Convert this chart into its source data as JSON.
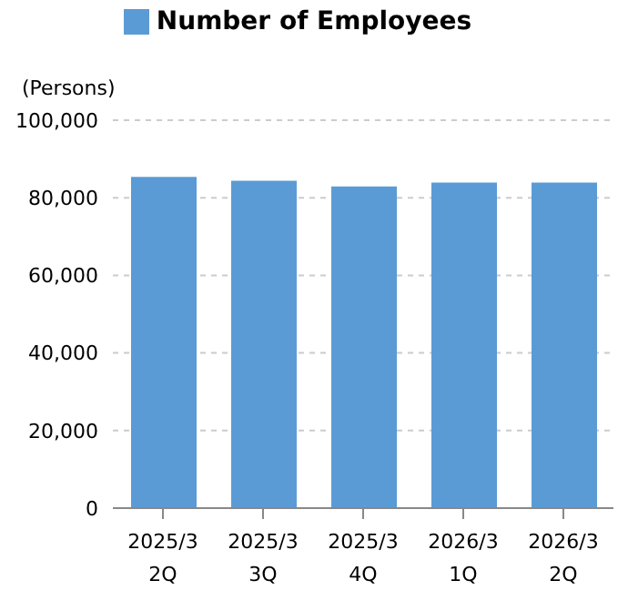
{
  "chart_data": {
    "type": "bar",
    "ylabel": "(Persons)",
    "categories": [
      "2025/3 2Q",
      "2025/3 3Q",
      "2025/3 4Q",
      "2026/3 1Q",
      "2026/3 2Q"
    ],
    "series": [
      {
        "name": "Number of Employees",
        "color": "#5b9bd5",
        "values": [
          85400,
          84400,
          82900,
          83900,
          83900
        ]
      }
    ],
    "ylim": [
      0,
      100000
    ],
    "yticks": [
      0,
      {
        "value": 20000,
        "label": "20,000"
      },
      {
        "value": 40000,
        "label": "40,000"
      },
      {
        "value": 60000,
        "label": "60,000"
      },
      {
        "value": 80000,
        "label": "80,000"
      },
      {
        "value": 100000,
        "label": "100,000"
      }
    ],
    "grid": "y",
    "legend": "top"
  }
}
